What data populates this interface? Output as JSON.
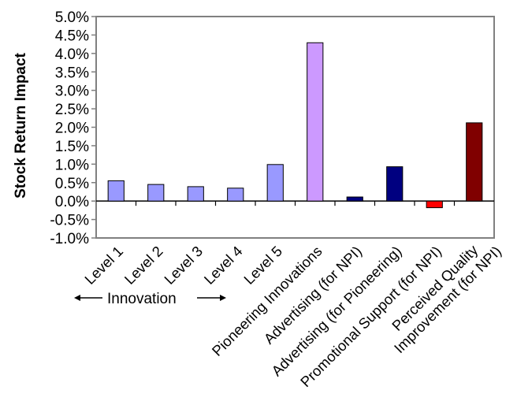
{
  "chart_data": {
    "type": "bar",
    "title": "",
    "xlabel": "",
    "ylabel": "Stock Return Impact",
    "ylim": [
      -0.01,
      0.05
    ],
    "ytick_step": 0.005,
    "categories": [
      "Level 1",
      "Level 2",
      "Level 3",
      "Level 4",
      "Level 5",
      "Pioneering Innovations",
      "Advertising (for NPI)",
      "Advertising (for Pioneering)",
      "Promotional Support (for NPI)",
      "Perceived Quality|Improvement (for NPI)"
    ],
    "values": [
      0.0055,
      0.0045,
      0.0039,
      0.0035,
      0.0099,
      0.0429,
      0.0011,
      0.0093,
      -0.0018,
      0.0212
    ],
    "colors": [
      "#9999ff",
      "#9999ff",
      "#9999ff",
      "#9999ff",
      "#9999ff",
      "#cc99ff",
      "#000080",
      "#000080",
      "#ff0000",
      "#800000"
    ],
    "annotation": "Innovation",
    "grid": false,
    "legend": "none"
  }
}
